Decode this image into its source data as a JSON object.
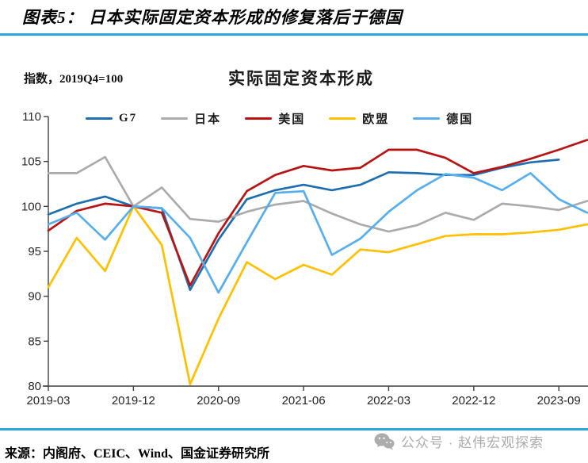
{
  "header": {
    "title": "图表5： 日本实际固定资本形成的修复落后于德国"
  },
  "subtitle": {
    "axis_note": "指数，2019Q4=100",
    "chart_title": "实际固定资本形成"
  },
  "footer": {
    "source": "来源：内阁府、CEIC、Wind、国金证券研究所",
    "watermark": "公众号 · 赵伟宏观探索",
    "watermark_icon": "wechat-logo"
  },
  "colors": {
    "accent_rule": "#2BA7DB",
    "axis_line": "#3f3f3f",
    "tick_text": "#262626",
    "watermark_gray": "#acacac"
  },
  "chart_data": {
    "type": "line",
    "title": "实际固定资本形成",
    "unit_note": "指数，2019Q4=100",
    "grid": false,
    "legend_position": "top",
    "ylim": [
      80,
      110
    ],
    "y_ticks": [
      110,
      105,
      100,
      95,
      90,
      85,
      80
    ],
    "categories": [
      "2019-03",
      "2019-06",
      "2019-09",
      "2019-12",
      "2020-03",
      "2020-06",
      "2020-09",
      "2020-12",
      "2021-03",
      "2021-06",
      "2021-09",
      "2021-12",
      "2022-03",
      "2022-06",
      "2022-09",
      "2022-12",
      "2023-03",
      "2023-06",
      "2023-09",
      "2023-12"
    ],
    "x_tick_indices": [
      0,
      3,
      6,
      9,
      12,
      15,
      18
    ],
    "x_tick_labels": [
      "2019-03",
      "2019-12",
      "2020-09",
      "2021-06",
      "2022-03",
      "2022-12",
      "2023-09"
    ],
    "series": [
      {
        "name": "G7",
        "color": "#1F6FB0",
        "values": [
          99.1,
          100.3,
          101.1,
          100.0,
          99.8,
          90.7,
          96.3,
          100.8,
          101.8,
          102.4,
          101.8,
          102.4,
          103.8,
          103.7,
          103.5,
          103.5,
          104.3,
          104.9,
          105.2,
          null
        ]
      },
      {
        "name": "日本",
        "color": "#ABABAB",
        "values": [
          103.7,
          103.7,
          105.5,
          100.0,
          102.1,
          98.6,
          98.3,
          99.4,
          100.2,
          100.6,
          99.2,
          98.0,
          97.2,
          97.9,
          99.3,
          98.5,
          100.3,
          100.0,
          99.6,
          100.6
        ]
      },
      {
        "name": "美国",
        "color": "#B81414",
        "values": [
          97.3,
          99.5,
          100.3,
          100.0,
          99.3,
          91.2,
          97.0,
          101.7,
          103.5,
          104.5,
          104.0,
          104.3,
          106.3,
          106.3,
          105.4,
          103.7,
          104.4,
          105.3,
          106.3,
          107.4
        ]
      },
      {
        "name": "欧盟",
        "color": "#FFC000",
        "values": [
          91.0,
          96.5,
          92.8,
          100.0,
          95.7,
          80.2,
          87.5,
          93.8,
          91.9,
          93.5,
          92.4,
          95.2,
          94.9,
          95.8,
          96.7,
          96.9,
          96.9,
          97.1,
          97.4,
          98.0
        ]
      },
      {
        "name": "德国",
        "color": "#56AEEF",
        "values": [
          98.0,
          99.3,
          96.3,
          100.0,
          99.8,
          96.5,
          90.4,
          96.0,
          101.5,
          101.7,
          94.6,
          96.4,
          99.4,
          101.8,
          103.6,
          103.2,
          101.8,
          103.7,
          100.8,
          99.3
        ]
      }
    ]
  }
}
